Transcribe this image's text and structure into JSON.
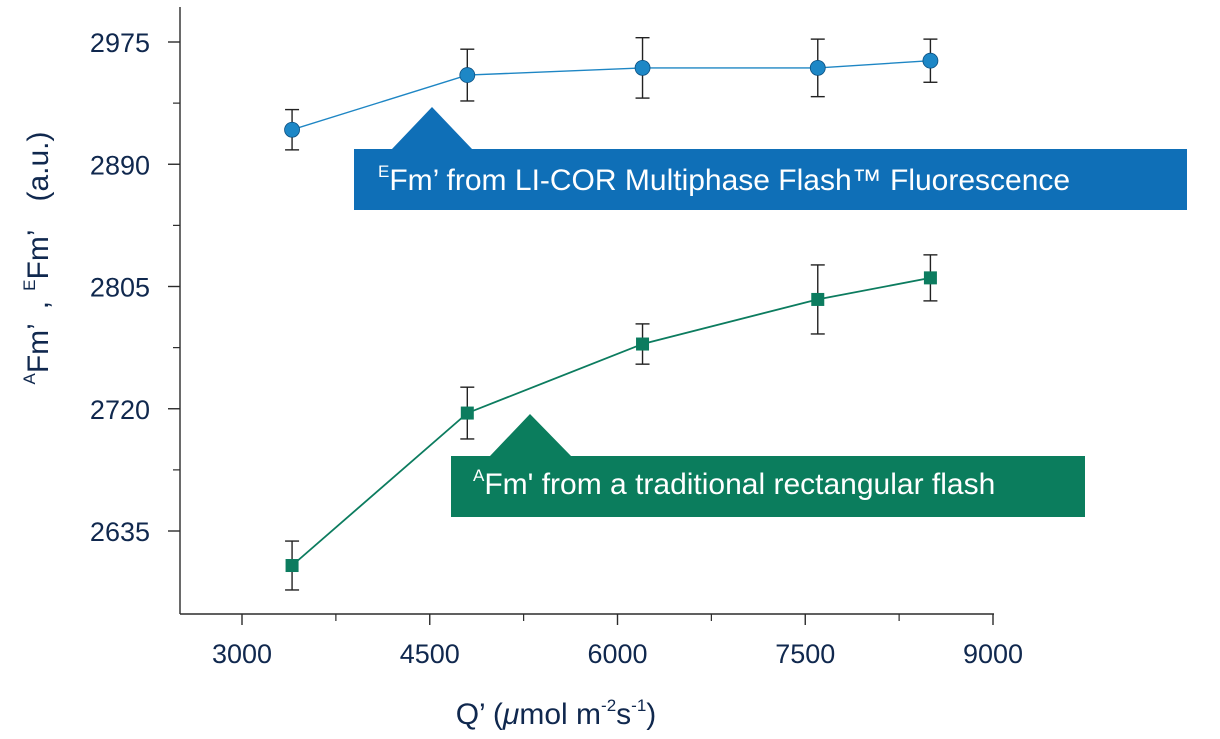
{
  "colors": {
    "axis": "#2b2b2b",
    "text": "#10284e",
    "series_blue": "#1e86c4",
    "series_blue_marker": "#1d87c6",
    "series_green": "#0c7c5f",
    "callout_blue": "#0f6fb7",
    "callout_green": "#0b7d5d",
    "error_bar": "#222222"
  },
  "chart_data": {
    "type": "line",
    "xlabel": {
      "main": "Q’ (",
      "mu": "μ",
      "mol": "mol m",
      "exp1": "-2",
      "s": "s",
      "exp2": "-1",
      "close": ")"
    },
    "ylabel": {
      "sup_a": "A",
      "fm_a": "Fm’",
      "comma": ",",
      "sup_e": "E",
      "fm_e": "Fm’",
      "units": "(a.u.)"
    },
    "xlim": [
      2500,
      9000
    ],
    "ylim": [
      2592,
      3000
    ],
    "x_ticks": [
      3000,
      4500,
      6000,
      7500,
      9000
    ],
    "x_tick_labels": [
      "3000",
      "4500",
      "6000",
      "7500",
      "9000"
    ],
    "x_minor_ticks": [
      3750,
      5250,
      6750,
      8250
    ],
    "y_ticks": [
      2635,
      2720,
      2805,
      2890,
      2975
    ],
    "y_tick_labels": [
      "2635",
      "2720",
      "2805",
      "2890",
      "2975"
    ],
    "y_minor_ticks": [
      2677.5,
      2762.5,
      2847.5,
      2932.5
    ],
    "grid": false,
    "series": [
      {
        "marker": "circle",
        "x": [
          3400,
          4800,
          6200,
          7600,
          8500
        ],
        "y": [
          2914,
          2952,
          2957,
          2957,
          2962
        ],
        "err": [
          14,
          18,
          21,
          20,
          15
        ]
      },
      {
        "marker": "square",
        "x": [
          3400,
          4800,
          6200,
          7600,
          8500
        ],
        "y": [
          2611,
          2717,
          2765,
          2796,
          2811
        ],
        "err": [
          17,
          18,
          14,
          24,
          16
        ]
      }
    ],
    "annotations": [
      {
        "series": 0,
        "prefix": "E",
        "text": "Fm’ from LI-COR Multiphase Flash™  Fluorescence"
      },
      {
        "series": 1,
        "prefix": "A",
        "text": "Fm' from a traditional rectangular flash"
      }
    ]
  }
}
